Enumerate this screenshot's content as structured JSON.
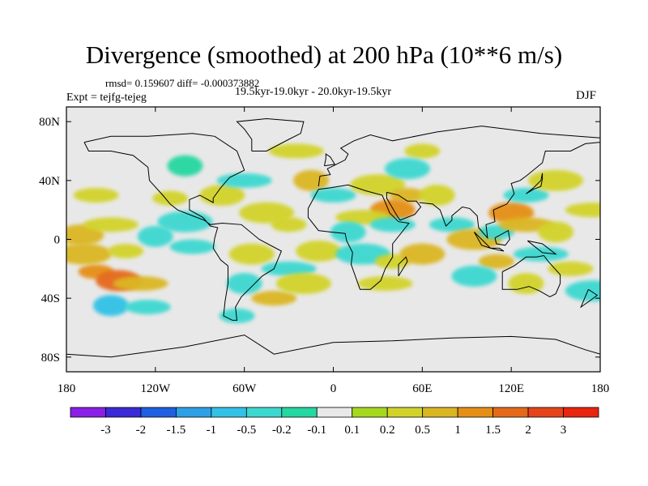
{
  "title": "Divergence (smoothed) at 200 hPa (10**6 m/s)",
  "stats_label": "rmsd= 0.159607 diff= -0.000373882",
  "experiment_label": "Expt = tejfg-tejeg",
  "period_label": "19.5kyr-19.0kyr - 20.0kyr-19.5kyr",
  "season_label": "DJF",
  "chart_data": {
    "type": "heatmap",
    "title": "Divergence (smoothed) at 200 hPa (10**6 m/s)",
    "xlabel": "",
    "ylabel": "",
    "xlim": [
      -180,
      180
    ],
    "ylim": [
      -90,
      90
    ],
    "x_ticks": [
      {
        "value": -180,
        "label": "180"
      },
      {
        "value": -120,
        "label": "120W"
      },
      {
        "value": -60,
        "label": "60W"
      },
      {
        "value": 0,
        "label": "0"
      },
      {
        "value": 60,
        "label": "60E"
      },
      {
        "value": 120,
        "label": "120E"
      },
      {
        "value": 180,
        "label": "180"
      }
    ],
    "y_ticks": [
      {
        "value": 80,
        "label": "80N"
      },
      {
        "value": 40,
        "label": "40N"
      },
      {
        "value": 0,
        "label": "0"
      },
      {
        "value": -40,
        "label": "40S"
      },
      {
        "value": -80,
        "label": "80S"
      }
    ],
    "colorbar": {
      "colors": [
        "#8a1fe6",
        "#3a2bd6",
        "#1f5fe0",
        "#2fa0e6",
        "#33c2e6",
        "#3cd8d0",
        "#25d7a0",
        "#e8e8e8",
        "#a6d81e",
        "#d2d32a",
        "#dbb623",
        "#e58f16",
        "#e5691a",
        "#e5441a",
        "#e8260f"
      ],
      "labels": [
        "-3",
        "-2",
        "-1.5",
        "-1",
        "-0.5",
        "-0.2",
        "-0.1",
        "0.1",
        "0.2",
        "0.5",
        "1",
        "1.5",
        "2",
        "3"
      ]
    },
    "anomalies": [
      {
        "lon": -160,
        "lat": -22,
        "value": 1.0
      },
      {
        "lon": -145,
        "lat": -28,
        "value": 1.5
      },
      {
        "lon": -130,
        "lat": -30,
        "value": 0.5
      },
      {
        "lon": -150,
        "lat": -45,
        "value": -1.0
      },
      {
        "lon": -125,
        "lat": -46,
        "value": -0.5
      },
      {
        "lon": -168,
        "lat": -10,
        "value": 0.5
      },
      {
        "lon": -140,
        "lat": -8,
        "value": 0.3
      },
      {
        "lon": -170,
        "lat": 3,
        "value": 0.5
      },
      {
        "lon": -150,
        "lat": 10,
        "value": 0.3
      },
      {
        "lon": -120,
        "lat": 2,
        "value": -0.3
      },
      {
        "lon": -95,
        "lat": -5,
        "value": -0.3
      },
      {
        "lon": -100,
        "lat": 12,
        "value": -0.3
      },
      {
        "lon": -110,
        "lat": 28,
        "value": 0.3
      },
      {
        "lon": -75,
        "lat": 30,
        "value": 0.3
      },
      {
        "lon": -60,
        "lat": 40,
        "value": -0.3
      },
      {
        "lon": -100,
        "lat": 50,
        "value": -0.2
      },
      {
        "lon": -160,
        "lat": 30,
        "value": 0.2
      },
      {
        "lon": -45,
        "lat": 18,
        "value": 0.3
      },
      {
        "lon": -30,
        "lat": 10,
        "value": 0.2
      },
      {
        "lon": -55,
        "lat": -10,
        "value": 0.3
      },
      {
        "lon": -30,
        "lat": -20,
        "value": -0.5
      },
      {
        "lon": -60,
        "lat": -30,
        "value": -0.3
      },
      {
        "lon": -40,
        "lat": -40,
        "value": 0.5
      },
      {
        "lon": -20,
        "lat": -30,
        "value": 0.3
      },
      {
        "lon": -65,
        "lat": -52,
        "value": -0.3
      },
      {
        "lon": -10,
        "lat": -8,
        "value": 0.3
      },
      {
        "lon": -25,
        "lat": 60,
        "value": 0.3
      },
      {
        "lon": -15,
        "lat": 40,
        "value": 0.5
      },
      {
        "lon": 0,
        "lat": 30,
        "value": -0.5
      },
      {
        "lon": 30,
        "lat": 37,
        "value": 0.3
      },
      {
        "lon": 50,
        "lat": 30,
        "value": 0.5
      },
      {
        "lon": 40,
        "lat": 20,
        "value": 1.0
      },
      {
        "lon": 20,
        "lat": 15,
        "value": 0.3
      },
      {
        "lon": 10,
        "lat": 5,
        "value": -0.3
      },
      {
        "lon": 40,
        "lat": 10,
        "value": -0.5
      },
      {
        "lon": 20,
        "lat": -10,
        "value": -0.5
      },
      {
        "lon": 40,
        "lat": -15,
        "value": 0.3
      },
      {
        "lon": 60,
        "lat": -10,
        "value": 0.5
      },
      {
        "lon": 35,
        "lat": -30,
        "value": 0.3
      },
      {
        "lon": 70,
        "lat": 30,
        "value": 0.3
      },
      {
        "lon": 80,
        "lat": 10,
        "value": -0.5
      },
      {
        "lon": 95,
        "lat": 0,
        "value": 0.5
      },
      {
        "lon": 110,
        "lat": 5,
        "value": -0.3
      },
      {
        "lon": 120,
        "lat": 18,
        "value": 1.0
      },
      {
        "lon": 130,
        "lat": 10,
        "value": 0.5
      },
      {
        "lon": 150,
        "lat": 5,
        "value": 0.3
      },
      {
        "lon": 130,
        "lat": 30,
        "value": -0.3
      },
      {
        "lon": 150,
        "lat": 40,
        "value": 0.3
      },
      {
        "lon": 110,
        "lat": -15,
        "value": 0.5
      },
      {
        "lon": 95,
        "lat": -25,
        "value": -0.3
      },
      {
        "lon": 140,
        "lat": -10,
        "value": -0.3
      },
      {
        "lon": 130,
        "lat": -30,
        "value": 0.3
      },
      {
        "lon": 160,
        "lat": -20,
        "value": 0.3
      },
      {
        "lon": 175,
        "lat": -35,
        "value": -0.3
      },
      {
        "lon": 60,
        "lat": 60,
        "value": 0.3
      },
      {
        "lon": 50,
        "lat": 48,
        "value": -0.3
      },
      {
        "lon": 175,
        "lat": 20,
        "value": 0.3
      }
    ]
  }
}
